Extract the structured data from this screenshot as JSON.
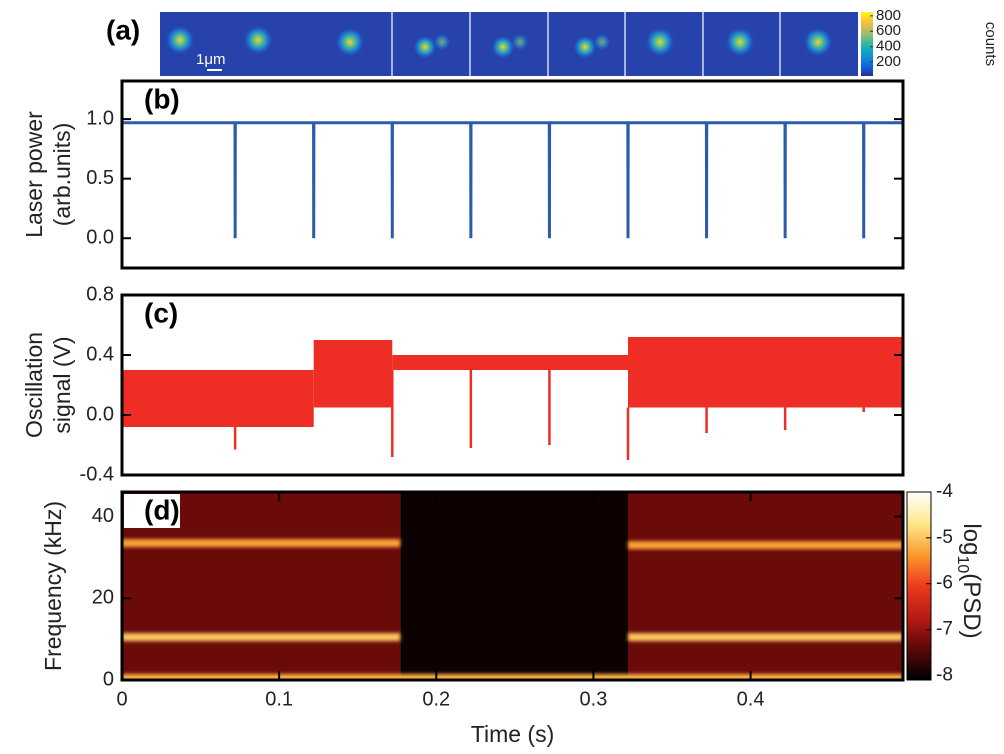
{
  "chart_data": [
    {
      "type": "images",
      "panel": "(a)",
      "scale_bar": "1μm",
      "colorbar_label": "counts",
      "clim": [
        20,
        850
      ],
      "cticks": [
        200,
        400,
        600,
        800
      ],
      "colormap": [
        "#352a87",
        "#0f5cdd",
        "#1481d6",
        "#06a4ca",
        "#2eb7a4",
        "#87bf77",
        "#d1bb59",
        "#fec832",
        "#f9fb0e"
      ]
    },
    {
      "type": "line",
      "panel": "(b)",
      "ylabel": [
        "Laser power",
        "(arb.units)"
      ],
      "xlim": [
        0,
        0.497
      ],
      "ylim": [
        -0.25,
        1.32
      ],
      "yticks": [
        {
          "value": 0,
          "label": "0.0"
        },
        {
          "value": 0.5,
          "label": "0.5"
        },
        {
          "value": 1,
          "label": "1.0"
        }
      ],
      "series": [
        {
          "color": "#2a5caa",
          "x": [
            0,
            0.0719,
            0.072,
            0.0721,
            0.1219,
            0.122,
            0.1221,
            0.1719,
            0.172,
            0.1721,
            0.2219,
            0.222,
            0.2221,
            0.2719,
            0.272,
            0.2721,
            0.3219,
            0.322,
            0.3221,
            0.3719,
            0.372,
            0.3721,
            0.4219,
            0.422,
            0.4221,
            0.4719,
            0.472,
            0.4721,
            0.497
          ],
          "values": [
            0.97,
            0.97,
            0,
            0.97,
            0.97,
            0,
            0.97,
            0.97,
            0,
            0.97,
            0.97,
            0,
            0.97,
            0.97,
            0,
            0.97,
            0.97,
            0,
            0.97,
            0.97,
            0,
            0.97,
            0.97,
            0,
            0.97,
            0.97,
            0,
            0.97,
            0.97
          ]
        }
      ]
    },
    {
      "type": "band",
      "panel": "(c)",
      "ylabel": [
        "Oscillation",
        "signal (V)"
      ],
      "xlim": [
        0,
        0.497
      ],
      "ylim": [
        -0.4,
        0.8
      ],
      "yticks": [
        -0.4,
        {
          "value": 0,
          "label": "0.0"
        },
        0.4,
        0.8
      ],
      "color": "#ee2d24",
      "segments": {
        "x": [
          0,
          0.122,
          0.172,
          0.322,
          0.497
        ],
        "lows": [
          -0.08,
          0.05,
          0.3,
          0.05
        ],
        "highs": [
          0.3,
          0.5,
          0.4,
          0.52
        ]
      },
      "spikes": {
        "x": [
          0.072,
          0.172,
          0.222,
          0.272,
          0.322,
          0.372,
          0.422,
          0.472
        ],
        "values": [
          -0.23,
          -0.28,
          -0.22,
          -0.2,
          -0.3,
          -0.12,
          -0.1,
          0.02
        ]
      }
    },
    {
      "type": "spectrogram",
      "panel": "(d)",
      "ylabel": [
        "Frequency (kHz)"
      ],
      "xlabel": "Time (s)",
      "xlim": [
        0,
        0.497
      ],
      "xticks": [
        0,
        0.1,
        0.2,
        0.3,
        0.4
      ],
      "ylim": [
        0,
        46
      ],
      "yticks": [
        0,
        20,
        40
      ],
      "background": {
        "x": [
          0,
          0.177,
          0.322,
          0.497
        ],
        "levels": [
          -7.3,
          -8,
          -7.3
        ]
      },
      "ridges": {
        "x0": [
          0,
          0,
          0.322,
          0.322,
          0
        ],
        "x1": [
          0.177,
          0.177,
          0.497,
          0.497,
          0.497
        ],
        "freq": [
          33.5,
          10.5,
          33,
          10.5,
          0.5
        ],
        "levels": [
          -5.3,
          -5,
          -5.3,
          -5,
          -5.2
        ]
      },
      "clim": [
        -8.1,
        -4
      ],
      "cticks": [
        -4,
        -5,
        -6,
        -7,
        -8
      ],
      "colorbar_label": [
        "log",
        "10",
        "(PSD)"
      ],
      "colormap": [
        "#000000",
        "#5a0808",
        "#b81a14",
        "#ec3b1c",
        "#fb9a2e",
        "#fde98a",
        "#ffffff"
      ]
    }
  ]
}
